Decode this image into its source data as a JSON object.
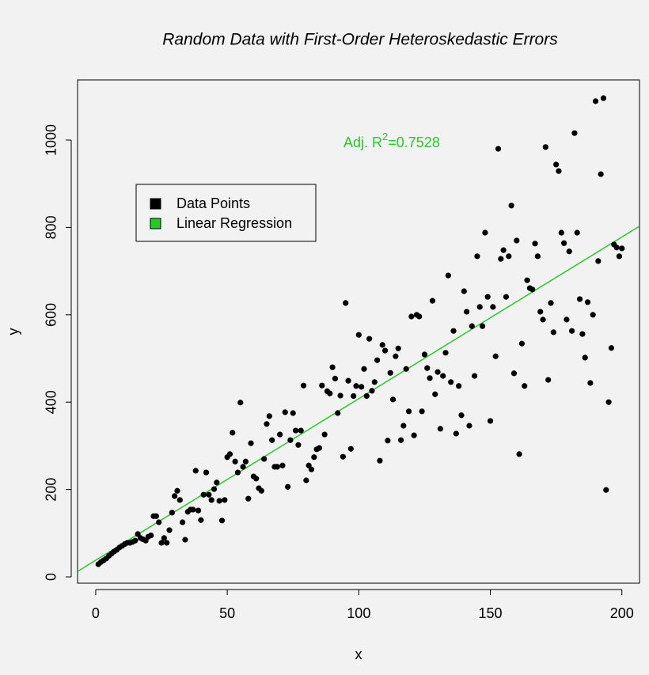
{
  "chart_data": {
    "type": "scatter",
    "title": "Random Data with First-Order Heteroskedastic Errors",
    "xlabel": "x",
    "ylabel": "y",
    "xlim": [
      -6.9,
      206.7
    ],
    "ylim": [
      -14.5,
      1137.7
    ],
    "xticks": [
      0,
      50,
      100,
      150,
      200
    ],
    "yticks": [
      0,
      200,
      400,
      600,
      800,
      1000
    ],
    "series": [
      {
        "name": "Data Points",
        "color": "#000000",
        "x": [
          1,
          2,
          3,
          4,
          5,
          6,
          7,
          8,
          9,
          10,
          11,
          12,
          13,
          14,
          15,
          16,
          17,
          18,
          19,
          20,
          21,
          22,
          23,
          24,
          25,
          26,
          27,
          28,
          29,
          30,
          31,
          32,
          33,
          34,
          35,
          36,
          37,
          38,
          39,
          40,
          41,
          42,
          43,
          44,
          45,
          46,
          47,
          48,
          49,
          50,
          51,
          52,
          53,
          54,
          55,
          56,
          57,
          58,
          59,
          60,
          61,
          62,
          63,
          64,
          65,
          66,
          67,
          68,
          69,
          70,
          71,
          72,
          73,
          74,
          75,
          76,
          77,
          78,
          79,
          80,
          81,
          82,
          83,
          84,
          85,
          86,
          87,
          88,
          89,
          90,
          91,
          92,
          93,
          94,
          95,
          96,
          97,
          98,
          99,
          100,
          101,
          102,
          103,
          104,
          105,
          106,
          107,
          108,
          109,
          110,
          111,
          112,
          113,
          114,
          115,
          116,
          117,
          118,
          119,
          120,
          121,
          122,
          123,
          124,
          125,
          126,
          127,
          128,
          129,
          130,
          131,
          132,
          133,
          134,
          135,
          136,
          137,
          138,
          139,
          140,
          141,
          142,
          143,
          144,
          145,
          146,
          147,
          148,
          149,
          150,
          151,
          152,
          153,
          154,
          155,
          156,
          157,
          158,
          159,
          160,
          161,
          162,
          163,
          164,
          165,
          166,
          167,
          168,
          169,
          170,
          171,
          172,
          173,
          174,
          175,
          176,
          177,
          178,
          179,
          180,
          181,
          182,
          183,
          184,
          185,
          186,
          187,
          188,
          189,
          190,
          191,
          192,
          193,
          194,
          195,
          196,
          197,
          198,
          199,
          200
        ],
        "values": [
          29,
          34,
          38,
          42,
          48,
          53,
          58,
          62,
          67,
          71,
          75,
          78,
          78,
          80,
          83,
          98,
          89,
          86,
          83,
          92,
          95,
          139,
          139,
          125,
          78,
          89,
          78,
          107,
          147,
          185,
          197,
          176,
          125,
          85,
          149,
          154,
          154,
          243,
          152,
          130,
          188,
          239,
          188,
          176,
          201,
          216,
          174,
          129,
          176,
          274,
          281,
          330,
          264,
          239,
          399,
          252,
          264,
          179,
          306,
          230,
          225,
          203,
          197,
          270,
          350,
          368,
          313,
          252,
          252,
          326,
          255,
          377,
          206,
          313,
          375,
          335,
          302,
          335,
          438,
          221,
          255,
          246,
          274,
          292,
          295,
          438,
          326,
          425,
          420,
          480,
          454,
          375,
          415,
          275,
          627,
          449,
          293,
          414,
          437,
          554,
          435,
          476,
          414,
          545,
          426,
          446,
          496,
          266,
          531,
          518,
          312,
          467,
          406,
          505,
          523,
          313,
          346,
          476,
          379,
          596,
          324,
          600,
          596,
          379,
          509,
          478,
          455,
          632,
          418,
          469,
          339,
          460,
          513,
          690,
          446,
          563,
          328,
          437,
          370,
          654,
          607,
          346,
          574,
          460,
          734,
          618,
          574,
          788,
          641,
          357,
          618,
          505,
          980,
          728,
          748,
          641,
          734,
          850,
          466,
          770,
          281,
          534,
          437,
          679,
          661,
          658,
          763,
          734,
          607,
          589,
          984,
          451,
          627,
          560,
          944,
          929,
          788,
          764,
          589,
          745,
          563,
          1016,
          788,
          636,
          556,
          502,
          629,
          444,
          600,
          1089,
          723,
          922,
          1096,
          199,
          400,
          524,
          761,
          754,
          734,
          752
        ]
      },
      {
        "name": "Linear Regression",
        "color": "#22cc22"
      }
    ],
    "regression": {
      "intercept": 38,
      "slope": 3.7
    },
    "annotation": {
      "prefix": "Adj. R",
      "superscript": "2",
      "suffix": "=0.7528",
      "color": "#22cc22"
    }
  }
}
